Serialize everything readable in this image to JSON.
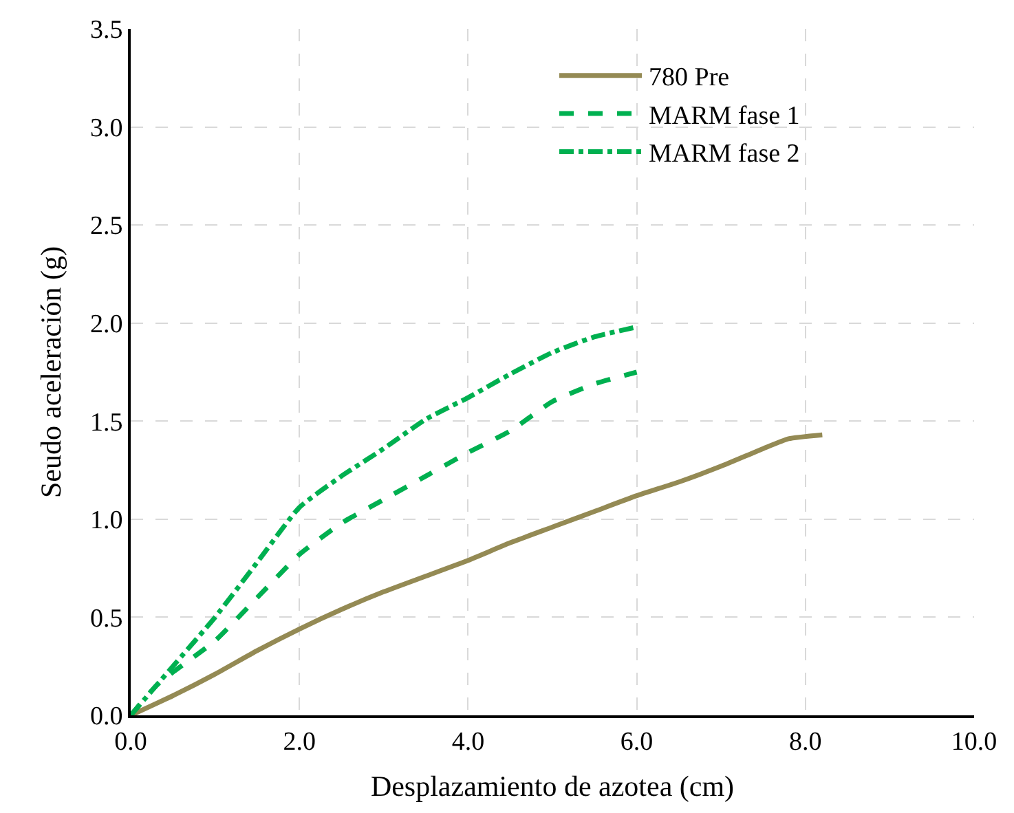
{
  "chart_data": {
    "type": "line",
    "xlabel": "Desplazamiento de azotea (cm)",
    "ylabel": "Seudo aceleración (g)",
    "xlim": [
      0,
      10
    ],
    "ylim": [
      0,
      3.5
    ],
    "xticks": [
      {
        "value": 0,
        "label": "0.0"
      },
      {
        "value": 2,
        "label": "2.0"
      },
      {
        "value": 4,
        "label": "4.0"
      },
      {
        "value": 6,
        "label": "6.0"
      },
      {
        "value": 8,
        "label": "8.0"
      },
      {
        "value": 10,
        "label": "10.0"
      }
    ],
    "yticks": [
      {
        "value": 0,
        "label": "0.0"
      },
      {
        "value": 0.5,
        "label": "0.5"
      },
      {
        "value": 1,
        "label": "1.0"
      },
      {
        "value": 1.5,
        "label": "1.5"
      },
      {
        "value": 2,
        "label": "2.0"
      },
      {
        "value": 2.5,
        "label": "2.5"
      },
      {
        "value": 3,
        "label": "3.0"
      },
      {
        "value": 3.5,
        "label": "3.5"
      }
    ],
    "grid": true,
    "legend": "top right",
    "marker": "none",
    "series": [
      {
        "name": "780 Pre",
        "color": "#948a54",
        "line_style": "solid",
        "x": [
          0,
          0.5,
          1,
          1.5,
          2,
          2.5,
          3,
          3.5,
          4,
          4.5,
          5,
          5.5,
          6,
          6.5,
          7,
          7.5,
          7.8,
          8.2
        ],
        "values": [
          0,
          0.1,
          0.21,
          0.33,
          0.44,
          0.54,
          0.63,
          0.71,
          0.79,
          0.88,
          0.96,
          1.04,
          1.12,
          1.19,
          1.27,
          1.36,
          1.41,
          1.43
        ]
      },
      {
        "name": "MARM fase 1",
        "color": "#00b050",
        "line_style": "dashed",
        "x": [
          0,
          0.3,
          0.5,
          1,
          1.5,
          2,
          2.5,
          3,
          3.5,
          4,
          4.5,
          5,
          5.5,
          6
        ],
        "values": [
          0,
          0.15,
          0.22,
          0.38,
          0.6,
          0.82,
          0.98,
          1.1,
          1.22,
          1.34,
          1.45,
          1.6,
          1.69,
          1.75
        ]
      },
      {
        "name": "MARM fase 2",
        "color": "#00b050",
        "line_style": "dashdot",
        "x": [
          0,
          0.3,
          0.5,
          1,
          1.5,
          2,
          2.5,
          3,
          3.5,
          4,
          4.5,
          5,
          5.5,
          6
        ],
        "values": [
          0,
          0.15,
          0.25,
          0.5,
          0.78,
          1.06,
          1.22,
          1.36,
          1.51,
          1.62,
          1.74,
          1.85,
          1.93,
          1.98
        ]
      }
    ]
  }
}
